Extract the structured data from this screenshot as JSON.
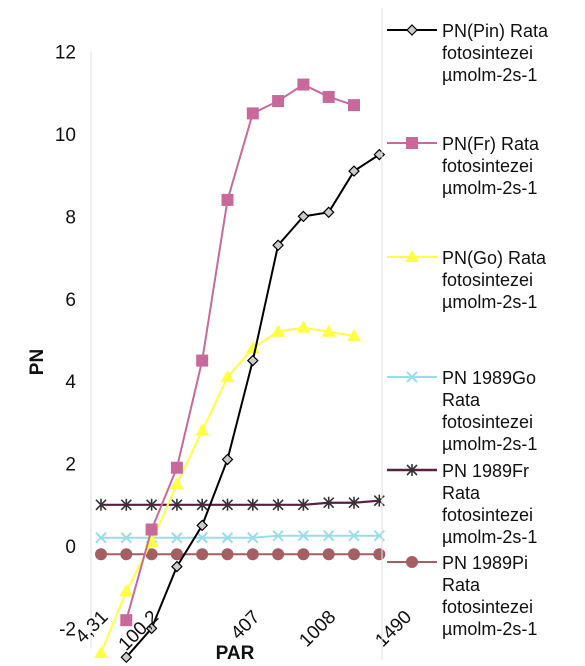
{
  "chart_data": {
    "type": "line",
    "title": "",
    "xlabel": "PAR",
    "ylabel": "PN",
    "ylim": [
      -2,
      12
    ],
    "yticks": [
      -2,
      0,
      2,
      4,
      6,
      8,
      10,
      12
    ],
    "grid": false,
    "legend_position": "right",
    "x_points": 16,
    "x_tick_labels": [
      {
        "index": 0,
        "label": "4,31"
      },
      {
        "index": 2,
        "label": "100,2"
      },
      {
        "index": 6,
        "label": "407"
      },
      {
        "index": 9,
        "label": "1008"
      },
      {
        "index": 12,
        "label": "1490"
      }
    ],
    "series": [
      {
        "name": "PN(Pin) Rata fotosintezei µmolm-2s-1",
        "legend_lines": [
          "PN(Pin) Rata",
          "fotosintezei",
          "µmolm-2s-1"
        ],
        "color": "#000000",
        "marker": "diamond",
        "values": [
          -2.7,
          -2.0,
          -0.5,
          0.5,
          2.1,
          4.5,
          7.3,
          8.0,
          8.1,
          9.1,
          9.5
        ],
        "start_index": 1
      },
      {
        "name": "PN(Fr) Rata fotosintezei µmolm-2s-1",
        "legend_lines": [
          "PN(Fr) Rata",
          "fotosintezei",
          "µmolm-2s-1"
        ],
        "color": "#c8699c",
        "marker": "square",
        "values": [
          -1.8,
          0.4,
          1.9,
          4.5,
          8.4,
          10.5,
          10.8,
          11.2,
          10.9,
          10.7
        ],
        "start_index": 1
      },
      {
        "name": "PN(Go) Rata fotosintezei µmolm-2s-1",
        "legend_lines": [
          "PN(Go) Rata",
          "fotosintezei",
          "µmolm-2s-1"
        ],
        "color": "#ffff44",
        "marker": "triangle",
        "values": [
          -2.6,
          -1.1,
          0.1,
          1.5,
          2.8,
          4.1,
          4.8,
          5.2,
          5.3,
          5.2,
          5.1
        ],
        "start_index": 0
      },
      {
        "name": "PN 1989Go Rata fotosintezei µmolm-2s-1",
        "legend_lines": [
          "PN 1989Go",
          "Rata",
          "fotosintezei",
          "µmolm-2s-1"
        ],
        "color": "#99dde8",
        "marker": "cross",
        "values": [
          0.2,
          0.2,
          0.2,
          0.2,
          0.2,
          0.2,
          0.2,
          0.25,
          0.25,
          0.25,
          0.25,
          0.25
        ],
        "start_index": 0
      },
      {
        "name": "PN 1989Fr Rata fotosintezei µmolm-2s-1",
        "legend_lines": [
          "PN 1989Fr",
          "Rata",
          "fotosintezei",
          "µmolm-2s-1"
        ],
        "color": "#55213f",
        "marker": "asterisk",
        "values": [
          1.0,
          1.0,
          1.0,
          1.0,
          1.0,
          1.0,
          1.0,
          1.0,
          1.0,
          1.05,
          1.05,
          1.1
        ],
        "start_index": 0
      },
      {
        "name": "PN 1989Pi Rata fotosintezei µmolm-2s-1",
        "legend_lines": [
          "PN 1989Pi",
          "Rata",
          "fotosintezei",
          "µmolm-2s-1"
        ],
        "color": "#a55e62",
        "marker": "circle",
        "values": [
          -0.2,
          -0.2,
          -0.2,
          -0.2,
          -0.2,
          -0.2,
          -0.2,
          -0.2,
          -0.2,
          -0.2,
          -0.2,
          -0.2
        ],
        "start_index": 0
      }
    ]
  }
}
